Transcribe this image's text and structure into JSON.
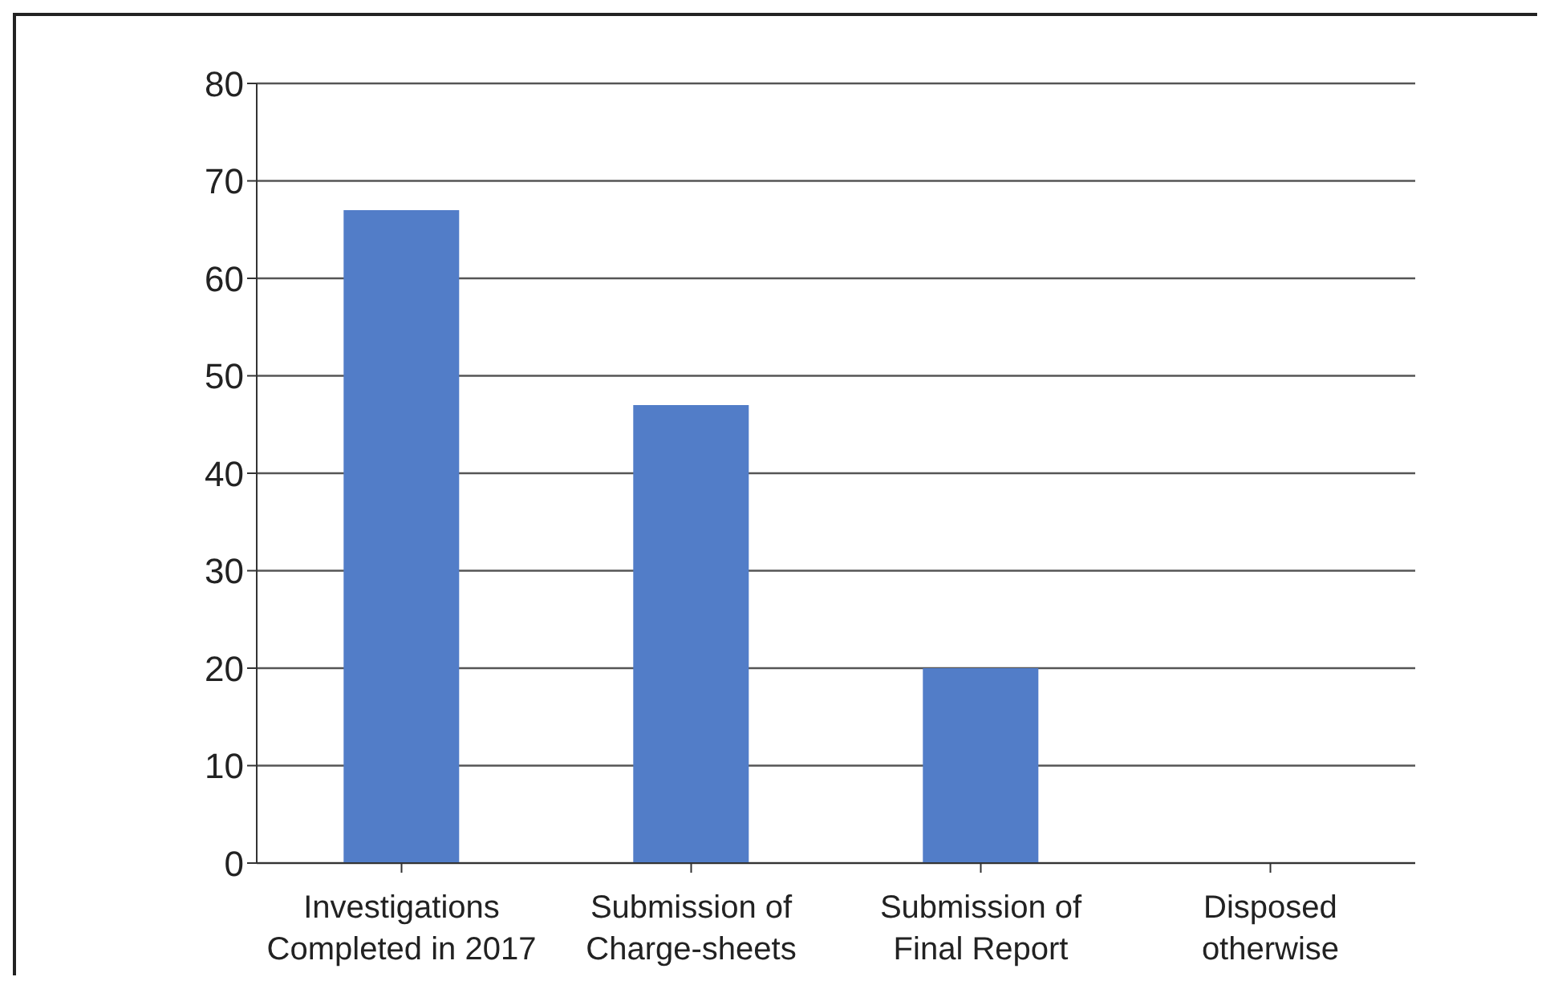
{
  "chart_data": {
    "type": "bar",
    "categories": [
      "Investigations Completed in 2017",
      "Submission of Charge-sheets",
      "Submission of Final Report",
      "Disposed otherwise"
    ],
    "values": [
      67,
      47,
      20,
      0
    ],
    "color": "#527dc8",
    "ylim": [
      0,
      80
    ],
    "yticks": [
      0,
      10,
      20,
      30,
      40,
      50,
      60,
      70,
      80
    ],
    "grid": "y",
    "legend": false
  }
}
